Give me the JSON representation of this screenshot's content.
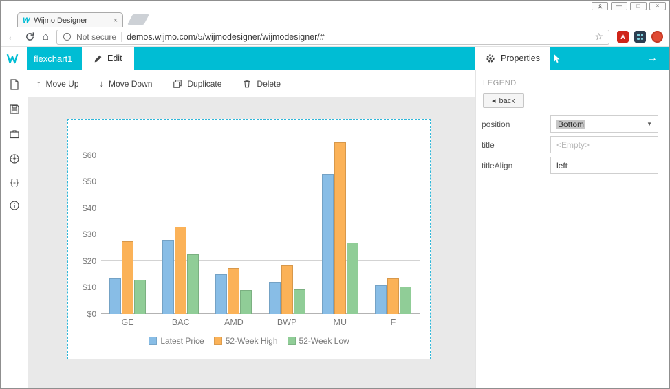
{
  "browser": {
    "tab_title": "Wijmo Designer",
    "security_label": "Not secure",
    "url": "demos.wijmo.com/5/wijmodesigner/wijmodesigner/#"
  },
  "app": {
    "doc_name": "flexchart1",
    "edit_tab_label": "Edit",
    "properties_tab_label": "Properties",
    "toolbar": {
      "move_up": "Move Up",
      "move_down": "Move Down",
      "duplicate": "Duplicate",
      "delete": "Delete"
    }
  },
  "properties_panel": {
    "section": "LEGEND",
    "back_label": "back",
    "rows": [
      {
        "label": "position",
        "value": "Bottom",
        "type": "select"
      },
      {
        "label": "title",
        "placeholder": "<Empty>",
        "type": "input"
      },
      {
        "label": "titleAlign",
        "value": "left",
        "type": "input"
      }
    ]
  },
  "sidebar": {
    "icons": [
      "new-file",
      "save",
      "briefcase",
      "palette",
      "code-braces",
      "info"
    ]
  },
  "icons": {
    "back_nav": "←",
    "home": "⌂",
    "star": "☆",
    "tab_close": "×",
    "minimize": "—",
    "maximize": "□",
    "close": "×",
    "move_up": "↑",
    "move_down": "↓",
    "arrow_right": "→",
    "back_triangle": "◂",
    "caret_down": "▼",
    "braces": "{-}",
    "favicon_letter": "W",
    "pdf_letter": "A"
  },
  "colors": {
    "accent": "#00bdd4",
    "selection_border": "#2fb7d9"
  },
  "chart_data": {
    "type": "bar",
    "title": "",
    "categories": [
      "GE",
      "BAC",
      "AMD",
      "BWP",
      "MU",
      "F"
    ],
    "series": [
      {
        "name": "Latest Price",
        "color": "#88bde6",
        "values": [
          13.5,
          28,
          15,
          12,
          53,
          11
        ]
      },
      {
        "name": "52-Week High",
        "color": "#fbb258",
        "values": [
          27.5,
          33,
          17.5,
          18.5,
          65,
          13.5
        ]
      },
      {
        "name": "52-Week Low",
        "color": "#90cd97",
        "values": [
          13,
          22.5,
          9,
          9.3,
          27,
          10.3
        ]
      }
    ],
    "yticks": [
      0,
      10,
      20,
      30,
      40,
      50,
      60
    ],
    "ytick_prefix": "$",
    "ylim": [
      0,
      66.2
    ],
    "grid": true,
    "legend_position": "bottom"
  }
}
